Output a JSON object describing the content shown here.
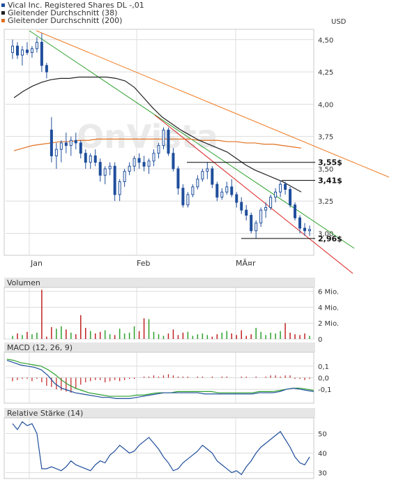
{
  "legend": [
    {
      "label": "Vical Inc. Registered Shares DL -,01",
      "color": "#1f4e9c"
    },
    {
      "label": "Gleitender Durchschnitt (38)",
      "color": "#222222"
    },
    {
      "label": "Gleitender Durchschnitt (200)",
      "color": "#e07020"
    }
  ],
  "colors": {
    "bg": "#ffffff",
    "panel_bg": "#ffffff",
    "panel_header_bg": "#e6e6e6",
    "grid": "#dcdcdc",
    "border": "#c8c8c8",
    "price": "#1f4e9c",
    "ma38": "#222222",
    "ma200": "#e07020",
    "trend_green": "#2ca02c",
    "trend_red": "#d62020",
    "trend_orange": "#f07a20",
    "vol_up": "#2ca02c",
    "vol_down": "#c02020",
    "macd": "#1f4e9c",
    "signal": "#2ca02c",
    "rsi": "#1f4e9c",
    "watermark": "#e8e8e8"
  },
  "watermark": "OnVista",
  "currency_label": "USD",
  "x_labels": [
    "Jan",
    "Feb",
    "MÃ¤r"
  ],
  "chart_data": [
    {
      "type": "line",
      "name": "price",
      "ylim": [
        2.83,
        4.58
      ],
      "y_ticks": [
        "4,50",
        "4,25",
        "4,00",
        "3,75",
        "3,50",
        "3,25",
        "3,00"
      ],
      "y_tick_values": [
        4.5,
        4.25,
        4.0,
        3.75,
        3.5,
        3.25,
        3.0
      ],
      "candles": [
        [
          4.4,
          4.5,
          4.35,
          4.45
        ],
        [
          4.45,
          4.48,
          4.35,
          4.38
        ],
        [
          4.38,
          4.45,
          4.3,
          4.42
        ],
        [
          4.42,
          4.48,
          4.38,
          4.4
        ],
        [
          4.4,
          4.45,
          4.36,
          4.43
        ],
        [
          4.43,
          4.52,
          4.4,
          4.48
        ],
        [
          4.48,
          4.55,
          4.25,
          4.3
        ],
        [
          4.3,
          4.32,
          4.2,
          4.25
        ],
        [
          3.8,
          3.9,
          3.55,
          3.6
        ],
        [
          3.6,
          3.7,
          3.5,
          3.65
        ],
        [
          3.65,
          3.72,
          3.55,
          3.7
        ],
        [
          3.7,
          3.78,
          3.62,
          3.68
        ],
        [
          3.68,
          3.75,
          3.6,
          3.72
        ],
        [
          3.72,
          3.78,
          3.65,
          3.7
        ],
        [
          3.7,
          3.72,
          3.58,
          3.62
        ],
        [
          3.62,
          3.65,
          3.5,
          3.55
        ],
        [
          3.55,
          3.62,
          3.5,
          3.6
        ],
        [
          3.6,
          3.65,
          3.52,
          3.55
        ],
        [
          3.55,
          3.58,
          3.4,
          3.45
        ],
        [
          3.45,
          3.52,
          3.38,
          3.5
        ],
        [
          3.5,
          3.55,
          3.45,
          3.52
        ],
        [
          3.52,
          3.55,
          3.25,
          3.3
        ],
        [
          3.3,
          3.42,
          3.25,
          3.4
        ],
        [
          3.4,
          3.5,
          3.36,
          3.48
        ],
        [
          3.48,
          3.55,
          3.45,
          3.52
        ],
        [
          3.52,
          3.6,
          3.48,
          3.58
        ],
        [
          3.58,
          3.62,
          3.5,
          3.55
        ],
        [
          3.55,
          3.6,
          3.48,
          3.52
        ],
        [
          3.52,
          3.58,
          3.46,
          3.56
        ],
        [
          3.56,
          3.65,
          3.52,
          3.62
        ],
        [
          3.62,
          3.7,
          3.58,
          3.68
        ],
        [
          3.68,
          3.82,
          3.65,
          3.8
        ],
        [
          3.8,
          3.82,
          3.6,
          3.62
        ],
        [
          3.62,
          3.66,
          3.48,
          3.5
        ],
        [
          3.5,
          3.52,
          3.3,
          3.35
        ],
        [
          3.35,
          3.38,
          3.2,
          3.22
        ],
        [
          3.22,
          3.32,
          3.2,
          3.3
        ],
        [
          3.3,
          3.38,
          3.28,
          3.36
        ],
        [
          3.36,
          3.45,
          3.34,
          3.42
        ],
        [
          3.42,
          3.5,
          3.4,
          3.48
        ],
        [
          3.48,
          3.55,
          3.42,
          3.5
        ],
        [
          3.5,
          3.52,
          3.35,
          3.38
        ],
        [
          3.38,
          3.4,
          3.25,
          3.28
        ],
        [
          3.28,
          3.35,
          3.26,
          3.32
        ],
        [
          3.32,
          3.4,
          3.3,
          3.36
        ],
        [
          3.36,
          3.42,
          3.28,
          3.3
        ],
        [
          3.3,
          3.32,
          3.2,
          3.24
        ],
        [
          3.24,
          3.28,
          3.15,
          3.18
        ],
        [
          3.18,
          3.22,
          3.1,
          3.14
        ],
        [
          3.14,
          3.16,
          3.0,
          3.02
        ],
        [
          3.02,
          3.1,
          2.96,
          3.08
        ],
        [
          3.08,
          3.2,
          3.05,
          3.18
        ],
        [
          3.18,
          3.24,
          3.12,
          3.2
        ],
        [
          3.2,
          3.3,
          3.18,
          3.28
        ],
        [
          3.28,
          3.35,
          3.24,
          3.32
        ],
        [
          3.32,
          3.41,
          3.28,
          3.38
        ],
        [
          3.38,
          3.4,
          3.3,
          3.34
        ],
        [
          3.34,
          3.36,
          3.2,
          3.22
        ],
        [
          3.22,
          3.24,
          3.1,
          3.12
        ],
        [
          3.12,
          3.14,
          3.0,
          3.04
        ],
        [
          3.04,
          3.08,
          2.98,
          3.02
        ],
        [
          3.02,
          3.06,
          2.98,
          3.03
        ]
      ],
      "ma38": [
        4.05,
        4.1,
        4.14,
        4.17,
        4.19,
        4.2,
        4.2,
        4.21,
        4.21,
        4.21,
        4.21,
        4.2,
        4.18,
        4.13,
        4.05,
        3.97,
        3.9,
        3.85,
        3.8,
        3.76,
        3.72,
        3.69,
        3.66,
        3.63,
        3.58,
        3.53,
        3.49,
        3.46,
        3.43,
        3.4,
        3.36,
        3.32
      ],
      "ma200": [
        3.64,
        3.66,
        3.68,
        3.69,
        3.7,
        3.71,
        3.71,
        3.72,
        3.72,
        3.73,
        3.73,
        3.73,
        3.73,
        3.73,
        3.73,
        3.73,
        3.73,
        3.73,
        3.73,
        3.73,
        3.72,
        3.72,
        3.72,
        3.71,
        3.71,
        3.7,
        3.7,
        3.69,
        3.69,
        3.68,
        3.67,
        3.66
      ],
      "levels": [
        {
          "label": "3,55$",
          "value": 3.55
        },
        {
          "label": "3,41$",
          "value": 3.41
        },
        {
          "label": "2,96$",
          "value": 2.96
        }
      ]
    },
    {
      "type": "bar",
      "name": "Volumen",
      "title": "Volumen",
      "ylim": [
        0,
        6.5
      ],
      "y_ticks": [
        "6 Mio.",
        "4 Mio.",
        "2 Mio.",
        "0"
      ],
      "y_tick_values": [
        6,
        4,
        2,
        0
      ],
      "values": [
        0.4,
        0.7,
        0.5,
        0.9,
        0.6,
        0.8,
        6.2,
        0.3,
        1.5,
        1.3,
        1.6,
        1.2,
        0.8,
        0.6,
        3.0,
        1.4,
        1.0,
        0.7,
        0.9,
        1.1,
        0.6,
        0.5,
        1.3,
        0.7,
        0.8,
        1.6,
        1.0,
        2.6,
        2.5,
        0.9,
        0.6,
        0.4,
        0.7,
        1.2,
        0.5,
        0.8,
        0.9,
        0.4,
        0.6,
        0.7,
        0.5,
        0.3,
        0.6,
        0.8,
        1.0,
        0.7,
        0.5,
        1.1,
        0.4,
        0.6,
        1.4,
        0.9,
        0.5,
        0.8,
        0.7,
        1.0,
        2.0,
        0.8,
        0.6,
        0.5,
        0.7,
        0.4
      ]
    },
    {
      "type": "line",
      "name": "MACD (12, 26, 9)",
      "title": "MACD (12, 26, 9)",
      "ylim": [
        -0.22,
        0.22
      ],
      "y_ticks": [
        "0,1",
        "0,0",
        "-0,1"
      ],
      "y_tick_values": [
        0.1,
        0.0,
        -0.1
      ],
      "macd": [
        0.15,
        0.13,
        0.11,
        0.1,
        0.09,
        0.07,
        0.02,
        -0.05,
        -0.09,
        -0.11,
        -0.13,
        -0.14,
        -0.15,
        -0.16,
        -0.17,
        -0.17,
        -0.18,
        -0.18,
        -0.18,
        -0.17,
        -0.16,
        -0.15,
        -0.14,
        -0.13,
        -0.13,
        -0.13,
        -0.13,
        -0.13,
        -0.13,
        -0.14,
        -0.14,
        -0.14,
        -0.14,
        -0.14,
        -0.14,
        -0.14,
        -0.14,
        -0.13,
        -0.13,
        -0.13,
        -0.12,
        -0.1,
        -0.09,
        -0.1,
        -0.11,
        -0.12
      ],
      "signal": [
        0.16,
        0.15,
        0.13,
        0.12,
        0.11,
        0.1,
        0.07,
        0.03,
        -0.02,
        -0.06,
        -0.09,
        -0.11,
        -0.13,
        -0.14,
        -0.15,
        -0.16,
        -0.16,
        -0.16,
        -0.16,
        -0.15,
        -0.15,
        -0.14,
        -0.13,
        -0.13,
        -0.13,
        -0.12,
        -0.12,
        -0.12,
        -0.12,
        -0.12,
        -0.12,
        -0.13,
        -0.13,
        -0.13,
        -0.13,
        -0.13,
        -0.13,
        -0.12,
        -0.12,
        -0.12,
        -0.11,
        -0.1,
        -0.09,
        -0.09,
        -0.1,
        -0.11
      ],
      "histogram": [
        -0.03,
        -0.02,
        -0.01,
        -0.01,
        -0.03,
        -0.01,
        -0.04,
        -0.07,
        -0.08,
        -0.1,
        -0.11,
        -0.12,
        -0.13,
        -0.09,
        -0.06,
        -0.04,
        -0.03,
        -0.02,
        -0.02,
        -0.04,
        -0.03,
        -0.02,
        -0.03,
        -0.02,
        -0.01,
        -0.01,
        0.0,
        0.01,
        0.01,
        0.02,
        0.01,
        0.02,
        0.03,
        0.02,
        0.01,
        0.01,
        0.01,
        0.0,
        0.01,
        0.01,
        0.0,
        0.01,
        0.0,
        0.01,
        0.01,
        0.0,
        0.0,
        0.01,
        0.01,
        0.0,
        0.01,
        0.0,
        0.01,
        0.02,
        0.02,
        0.01,
        0.02,
        0.02,
        -0.01,
        -0.01,
        -0.02,
        -0.01
      ]
    },
    {
      "type": "line",
      "name": "Relative Stärke (14)",
      "title": "Relative Stärke (14)",
      "ylim": [
        27,
        58
      ],
      "y_ticks": [
        "50",
        "40",
        "30"
      ],
      "y_tick_values": [
        50,
        40,
        30
      ],
      "values": [
        55,
        52,
        56,
        54,
        55,
        50,
        32,
        32,
        33,
        32,
        31,
        33,
        36,
        34,
        33,
        32,
        31,
        34,
        36,
        35,
        39,
        41,
        44,
        42,
        40,
        41,
        44,
        46,
        48,
        45,
        42,
        38,
        35,
        31,
        32,
        35,
        37,
        39,
        41,
        44,
        42,
        40,
        36,
        34,
        32,
        30,
        31,
        29,
        33,
        36,
        40,
        43,
        45,
        47,
        49,
        51,
        47,
        43,
        38,
        35,
        34,
        38
      ]
    }
  ]
}
